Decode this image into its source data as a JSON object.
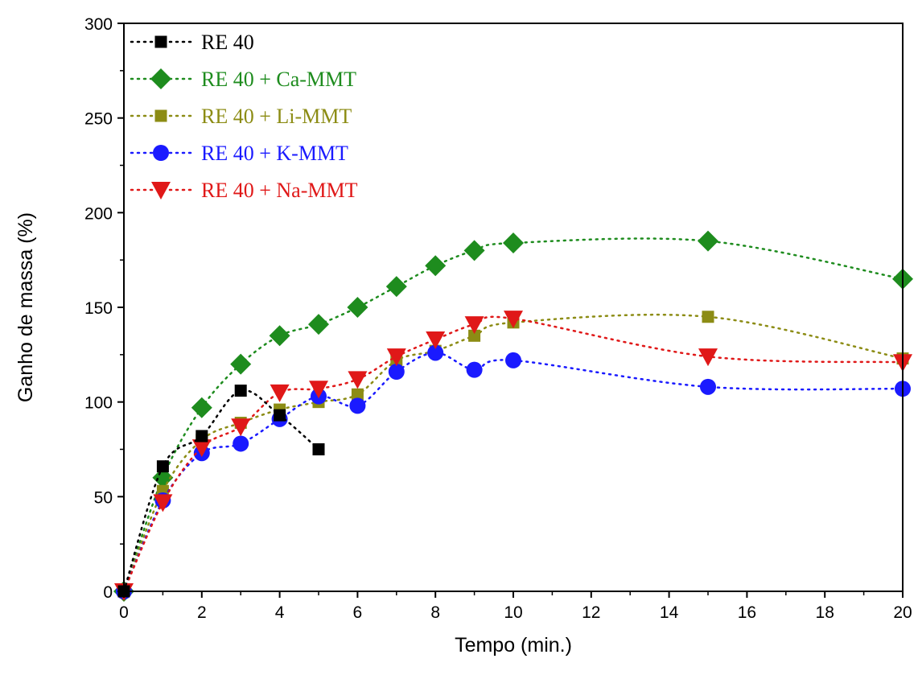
{
  "chart_data": {
    "type": "scatter",
    "title": "",
    "xlabel": "Tempo (min.)",
    "ylabel": "Ganho de massa (%)",
    "xlim": [
      0,
      20
    ],
    "ylim": [
      0,
      300
    ],
    "xticks": [
      0,
      2,
      4,
      6,
      8,
      10,
      12,
      14,
      16,
      18,
      20
    ],
    "yticks": [
      0,
      50,
      100,
      150,
      200,
      250,
      300
    ],
    "grid": false,
    "legend_position": "top-left",
    "line_style": "dotted",
    "series": [
      {
        "name": "RE 40",
        "color": "#000000",
        "marker": "square",
        "x": [
          0,
          1,
          2,
          3,
          4,
          5
        ],
        "y": [
          0,
          66,
          82,
          106,
          93,
          75
        ]
      },
      {
        "name": "RE 40 + Ca-MMT",
        "color": "#1e8c1e",
        "marker": "diamond",
        "x": [
          0,
          1,
          2,
          3,
          4,
          5,
          6,
          7,
          8,
          9,
          10,
          15,
          20
        ],
        "y": [
          0,
          60,
          97,
          120,
          135,
          141,
          150,
          161,
          172,
          180,
          184,
          185,
          165
        ]
      },
      {
        "name": "RE 40 + Li-MMT",
        "color": "#8c8c14",
        "marker": "square",
        "x": [
          0,
          1,
          2,
          3,
          4,
          5,
          6,
          7,
          8,
          9,
          10,
          15,
          20
        ],
        "y": [
          0,
          53,
          80,
          89,
          96,
          100,
          104,
          122,
          127,
          135,
          142,
          145,
          123
        ]
      },
      {
        "name": "RE 40 + K-MMT",
        "color": "#1a1aff",
        "marker": "circle",
        "x": [
          0,
          1,
          2,
          3,
          4,
          5,
          6,
          7,
          8,
          9,
          10,
          15,
          20
        ],
        "y": [
          0,
          48,
          73,
          78,
          91,
          103,
          98,
          116,
          126,
          117,
          122,
          108,
          107
        ]
      },
      {
        "name": "RE 40 + Na-MMT",
        "color": "#e01818",
        "marker": "triangle-down",
        "x": [
          0,
          1,
          2,
          3,
          4,
          5,
          6,
          7,
          8,
          9,
          10,
          15,
          20
        ],
        "y": [
          0,
          47,
          76,
          87,
          105,
          107,
          112,
          124,
          133,
          141,
          144,
          124,
          121
        ]
      }
    ]
  }
}
